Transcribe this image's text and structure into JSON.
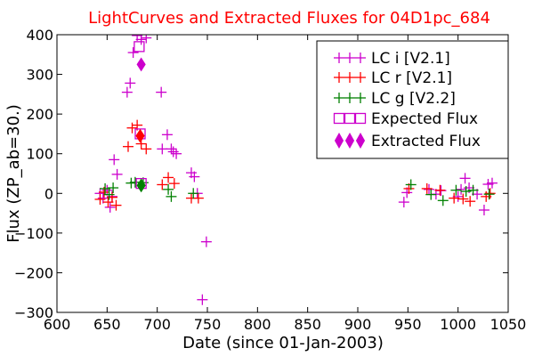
{
  "colors": {
    "lc_i": "#cc00cc",
    "lc_r": "#ff0000",
    "lc_g": "#008000",
    "title": "#ff0000",
    "axes": "#000000"
  },
  "chart_data": {
    "type": "scatter",
    "title": "LightCurves and Extracted Fluxes for 04D1pc_684",
    "xlabel": "Date (since 01-Jan-2003)",
    "ylabel": "Flux (ZP_ab=30.)",
    "xlim": [
      600,
      1050
    ],
    "ylim": [
      -300,
      400
    ],
    "xticks": [
      600,
      650,
      700,
      750,
      800,
      850,
      900,
      950,
      1000,
      1050
    ],
    "yticks": [
      -300,
      -200,
      -100,
      0,
      100,
      200,
      300,
      400
    ],
    "xtick_labels": [
      "600",
      "650",
      "700",
      "750",
      "800",
      "850",
      "900",
      "950",
      "1000",
      "1050"
    ],
    "ytick_labels": [
      "−300",
      "−200",
      "−100",
      "0",
      "100",
      "200",
      "300",
      "400"
    ],
    "grid": false,
    "legend_position": "top-right",
    "series": [
      {
        "name": "LC i [V2.1]",
        "marker": "plus",
        "color": "#cc00cc",
        "points": [
          [
            643,
            0
          ],
          [
            646,
            -12
          ],
          [
            650,
            8
          ],
          [
            653,
            -35
          ],
          [
            655,
            -8
          ],
          [
            657,
            85
          ],
          [
            660,
            48
          ],
          [
            670,
            255
          ],
          [
            673,
            278
          ],
          [
            676,
            355
          ],
          [
            680,
            398
          ],
          [
            684,
            388
          ],
          [
            689,
            392
          ],
          [
            704,
            255
          ],
          [
            705,
            112
          ],
          [
            710,
            148
          ],
          [
            714,
            112
          ],
          [
            716,
            105
          ],
          [
            719,
            100
          ],
          [
            734,
            52
          ],
          [
            737,
            42
          ],
          [
            740,
            0
          ],
          [
            745,
            -268
          ],
          [
            749,
            -122
          ],
          [
            946,
            -22
          ],
          [
            949,
            2
          ],
          [
            971,
            10
          ],
          [
            978,
            -2
          ],
          [
            983,
            7
          ],
          [
            1000,
            -8
          ],
          [
            1003,
            10
          ],
          [
            1007,
            38
          ],
          [
            1011,
            14
          ],
          [
            1019,
            -2
          ],
          [
            1026,
            -42
          ],
          [
            1030,
            23
          ],
          [
            1034,
            26
          ]
        ]
      },
      {
        "name": "LC r [V2.1]",
        "marker": "plus",
        "color": "#ff0000",
        "points": [
          [
            643,
            -15
          ],
          [
            647,
            3
          ],
          [
            651,
            -22
          ],
          [
            655,
            -10
          ],
          [
            659,
            -30
          ],
          [
            671,
            118
          ],
          [
            675,
            165
          ],
          [
            680,
            172
          ],
          [
            684,
            125
          ],
          [
            689,
            112
          ],
          [
            705,
            22
          ],
          [
            711,
            40
          ],
          [
            717,
            25
          ],
          [
            734,
            -12
          ],
          [
            741,
            -12
          ],
          [
            951,
            12
          ],
          [
            969,
            12
          ],
          [
            982,
            8
          ],
          [
            996,
            -12
          ],
          [
            1005,
            -14
          ],
          [
            1012,
            -20
          ],
          [
            1028,
            -8
          ],
          [
            1032,
            0
          ]
        ]
      },
      {
        "name": "LC g [V2.2]",
        "marker": "plus",
        "color": "#008000",
        "points": [
          [
            648,
            12
          ],
          [
            652,
            -3
          ],
          [
            656,
            14
          ],
          [
            674,
            26
          ],
          [
            678,
            28
          ],
          [
            686,
            27
          ],
          [
            711,
            10
          ],
          [
            714,
            -8
          ],
          [
            736,
            0
          ],
          [
            953,
            22
          ],
          [
            973,
            -3
          ],
          [
            985,
            -18
          ],
          [
            998,
            8
          ],
          [
            1008,
            5
          ],
          [
            1015,
            8
          ],
          [
            1031,
            -2
          ]
        ]
      },
      {
        "name": "Expected Flux",
        "marker": "square",
        "color": "#cc00cc",
        "points": [
          [
            682,
            370
          ],
          [
            683,
            150
          ],
          [
            684,
            25
          ]
        ]
      },
      {
        "name": "Extracted Flux",
        "marker": "diamond",
        "color": "#cc00cc",
        "points": [
          [
            684,
            325
          ],
          [
            683,
            145
          ],
          [
            684,
            20
          ]
        ],
        "point_colors": [
          "#cc00cc",
          "#ff0000",
          "#008000"
        ]
      }
    ]
  }
}
